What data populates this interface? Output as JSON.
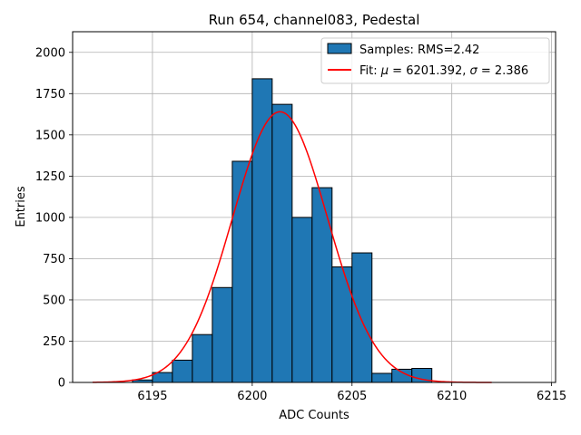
{
  "chart_data": {
    "type": "bar",
    "title": "Run 654, channel083, Pedestal",
    "xlabel": "ADC Counts",
    "ylabel": "Entries",
    "xlim": [
      6191.0,
      6215.2
    ],
    "ylim": [
      0,
      2125
    ],
    "xticks": [
      6195,
      6200,
      6205,
      6210,
      6215
    ],
    "yticks": [
      0,
      250,
      500,
      750,
      1000,
      1250,
      1500,
      1750,
      2000
    ],
    "grid": true,
    "legend_position": "top-right",
    "histogram": {
      "name": "Samples: RMS=2.42",
      "bin_width": 1,
      "bin_starts": [
        6194,
        6195,
        6196,
        6197,
        6198,
        6199,
        6200,
        6201,
        6202,
        6203,
        6204,
        6205,
        6206,
        6207,
        6208
      ],
      "values": [
        15,
        60,
        135,
        290,
        575,
        1340,
        1840,
        1685,
        1000,
        1180,
        700,
        785,
        55,
        80,
        85
      ],
      "color": "#1f77b4",
      "edge_color": "#000000"
    },
    "fit": {
      "name_prefix": "Fit: ",
      "name_mu": "μ",
      "name_mid": " = 6201.392, ",
      "name_sigma": "σ",
      "name_suffix": " = 2.386",
      "mu": 6201.392,
      "sigma": 2.386,
      "amplitude": 1640,
      "x_range": [
        6192,
        6212
      ],
      "color": "#ff0000"
    }
  }
}
